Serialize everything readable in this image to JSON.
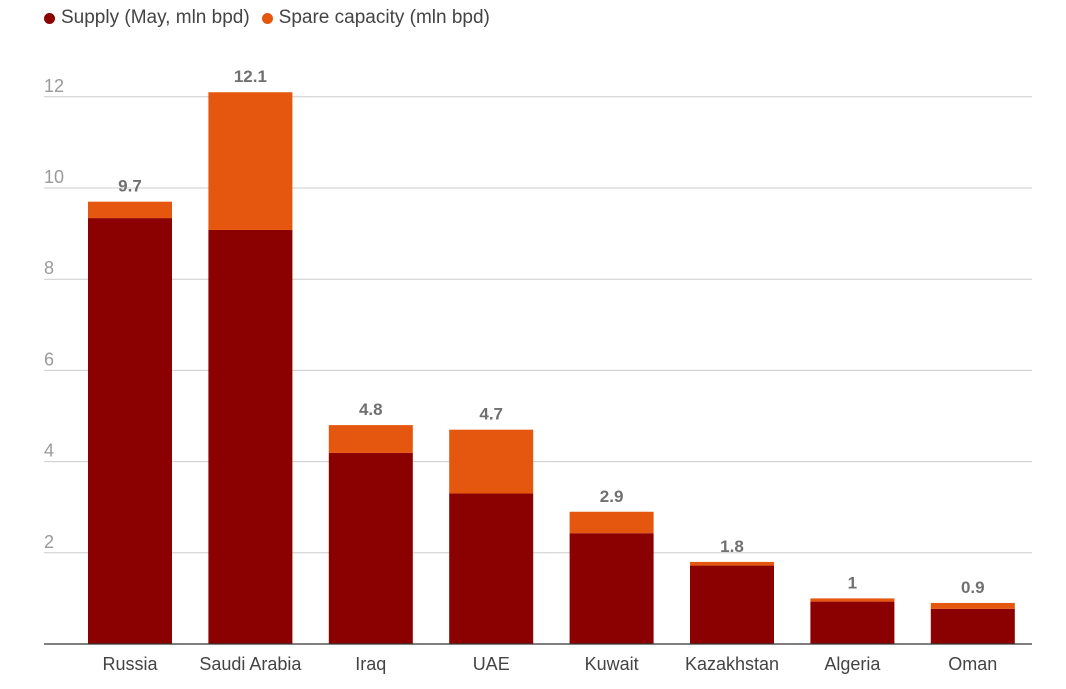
{
  "chart_data": {
    "type": "bar",
    "stacked": true,
    "categories": [
      "Russia",
      "Saudi Arabia",
      "Iraq",
      "UAE",
      "Kuwait",
      "Kazakhstan",
      "Algeria",
      "Oman"
    ],
    "series": [
      {
        "name": "Supply (May, mln bpd)",
        "color": "#8b0000",
        "values": [
          9.34,
          9.08,
          4.19,
          3.3,
          2.43,
          1.72,
          0.93,
          0.77
        ]
      },
      {
        "name": "Spare capacity (mln bpd)",
        "color": "#e5560f",
        "values": [
          0.36,
          3.02,
          0.61,
          1.4,
          0.47,
          0.08,
          0.07,
          0.13
        ]
      }
    ],
    "totals": [
      9.7,
      12.1,
      4.8,
      4.7,
      2.9,
      1.8,
      1,
      0.9
    ],
    "total_labels": [
      "9.7",
      "12.1",
      "4.8",
      "4.7",
      "2.9",
      "1.8",
      "1",
      "0.9"
    ],
    "yticks": [
      2,
      4,
      6,
      8,
      10,
      12
    ],
    "ytick_labels": [
      "2",
      "4",
      "6",
      "8",
      "10",
      "12"
    ],
    "ylim": [
      0,
      12.6
    ],
    "grid": true,
    "title": "",
    "xlabel": "",
    "ylabel": "",
    "legend_position": "top-left"
  }
}
